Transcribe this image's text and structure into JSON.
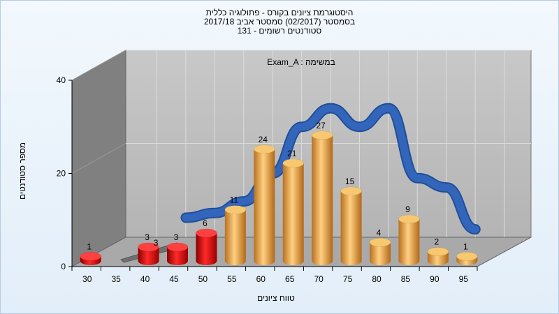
{
  "chart_data": {
    "type": "bar",
    "title_lines": [
      "היסטוגרמת ציונים בקורס - פתולוגיה כללית",
      "בסמסטר (02/2017) סמסטר אביב 2017/18",
      "סטודנטים רשומים - 131"
    ],
    "annotation": "Exam_A : במשימה",
    "xlabel": "טווח ציונים",
    "ylabel": "מספר סטודנטים",
    "x_ticks": [
      "30",
      "35",
      "40",
      "45",
      "50",
      "55",
      "60",
      "65",
      "70",
      "75",
      "80",
      "85",
      "90",
      "95"
    ],
    "y_ticks": [
      "0",
      "20",
      "40"
    ],
    "ylim": [
      0,
      40
    ],
    "categories": [
      "30",
      "35",
      "40",
      "45",
      "50",
      "55",
      "60",
      "65",
      "70",
      "75",
      "80",
      "85",
      "90",
      "95"
    ],
    "values": [
      1,
      null,
      3,
      3,
      6,
      11,
      24,
      21,
      27,
      15,
      4,
      9,
      2,
      1
    ],
    "data_labels": [
      "1",
      "",
      "3",
      "3",
      "6",
      "11",
      "24",
      "21",
      "27",
      "15",
      "4",
      "9",
      "2",
      "1"
    ],
    "grey_segment": {
      "category": "35",
      "value": 3,
      "label": "3"
    },
    "passing_threshold_category": "55",
    "bar_colors": {
      "fail": "#e01818",
      "pass": "#e8a040"
    },
    "curve": {
      "color": "#3366bb",
      "points": [
        [
          45,
          4.5
        ],
        [
          50,
          5.5
        ],
        [
          55,
          8
        ],
        [
          60,
          14
        ],
        [
          65,
          24
        ],
        [
          70,
          28
        ],
        [
          75,
          24
        ],
        [
          80,
          28
        ],
        [
          85,
          13
        ],
        [
          90,
          11
        ],
        [
          95,
          2
        ]
      ]
    },
    "grid": true,
    "legend": "none"
  }
}
